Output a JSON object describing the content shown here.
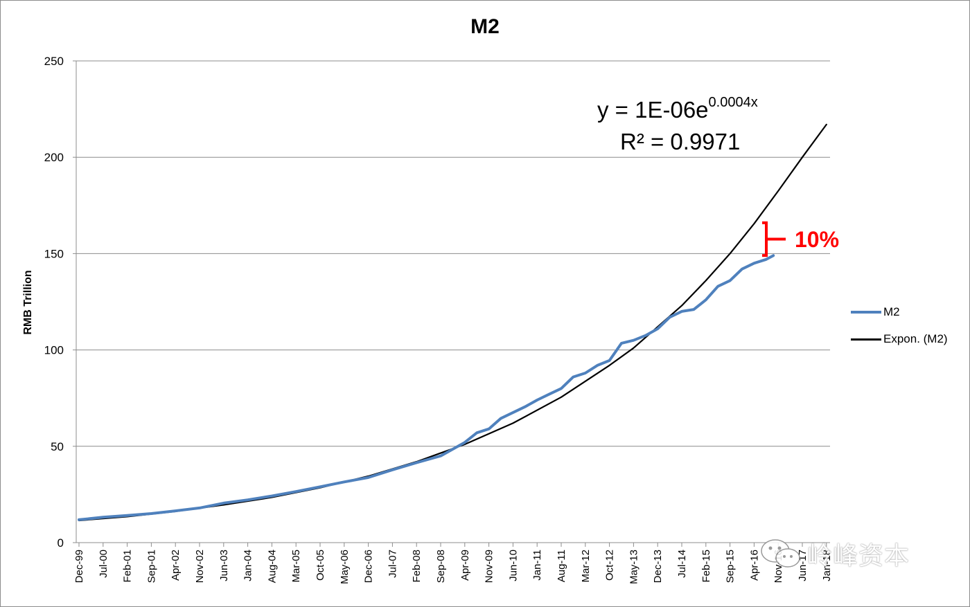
{
  "chart_data": {
    "type": "line",
    "title": "M2",
    "xlabel": "",
    "ylabel": "RMB Trillion",
    "ylim": [
      0,
      250
    ],
    "yticks": [
      0,
      50,
      100,
      150,
      200,
      250
    ],
    "grid": "horizontal",
    "legend_position": "right",
    "x_tick_labels": [
      "Dec-99",
      "Jul-00",
      "Feb-01",
      "Sep-01",
      "Apr-02",
      "Nov-02",
      "Jun-03",
      "Jan-04",
      "Aug-04",
      "Mar-05",
      "Oct-05",
      "May-06",
      "Dec-06",
      "Jul-07",
      "Feb-08",
      "Sep-08",
      "Apr-09",
      "Nov-09",
      "Jun-10",
      "Jan-11",
      "Aug-11",
      "Mar-12",
      "Oct-12",
      "May-13",
      "Dec-13",
      "Jul-14",
      "Feb-15",
      "Sep-15",
      "Apr-16",
      "Nov-16",
      "Jun-17",
      "Jan-18"
    ],
    "series": [
      {
        "name": "M2",
        "color": "#4f81bd",
        "x_index": [
          0,
          1,
          2,
          3,
          4,
          5,
          6,
          7,
          8,
          9,
          10,
          11,
          12,
          13,
          14,
          15,
          16,
          16.5,
          17,
          17.5,
          18,
          18.5,
          19,
          19.5,
          20,
          20.5,
          21,
          21.5,
          22,
          22.5,
          23,
          23.5,
          24,
          24.5,
          25,
          25.5,
          26,
          26.5,
          27,
          27.5,
          28,
          28.5,
          28.8
        ],
        "values": [
          11.9,
          13.2,
          14.1,
          15.1,
          16.5,
          18.0,
          20.5,
          22.2,
          24.2,
          26.5,
          29.0,
          31.5,
          33.8,
          37.8,
          41.5,
          45.0,
          52.0,
          57.0,
          59.0,
          64.5,
          67.5,
          70.5,
          74.0,
          77.0,
          80.0,
          86.0,
          88.0,
          92.0,
          94.5,
          103.5,
          105.0,
          107.5,
          111.0,
          117.0,
          120.0,
          121.0,
          126.0,
          133.0,
          136.0,
          142.0,
          145.0,
          147.0,
          149.0
        ]
      },
      {
        "name": "Expon. (M2)",
        "color": "#000000",
        "x_index": [
          0,
          2,
          4,
          6,
          8,
          10,
          12,
          14,
          16,
          18,
          20,
          22,
          23,
          24,
          25,
          26,
          27,
          28,
          29,
          30,
          31
        ],
        "values": [
          11.5,
          13.5,
          16.2,
          19.6,
          23.5,
          28.5,
          34.5,
          42.0,
          51.0,
          62.0,
          75.5,
          92.0,
          101.0,
          112.0,
          123.0,
          136.0,
          150.0,
          165.5,
          182.5,
          200.0,
          217.0
        ]
      }
    ],
    "annotations": {
      "equation_base": "y = 1E-06e",
      "equation_exp": "0.0004x",
      "r_squared": "R² = 0.9971",
      "gap_label": "10%",
      "gap_color": "#ff0000"
    }
  },
  "watermark": {
    "text": "岭峰资本",
    "icon": "wechat-icon"
  }
}
